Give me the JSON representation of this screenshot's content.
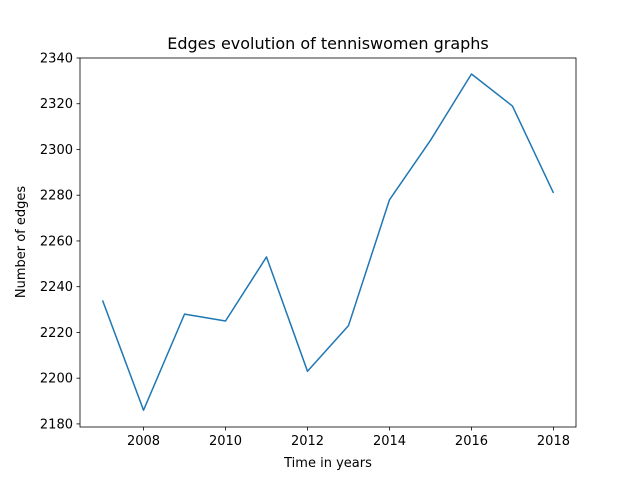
{
  "chart_data": {
    "type": "line",
    "title": "Edges evolution of tenniswomen graphs",
    "xlabel": "Time in years",
    "ylabel": "Number of edges",
    "x": [
      2007,
      2008,
      2009,
      2010,
      2011,
      2012,
      2013,
      2014,
      2015,
      2016,
      2017,
      2018
    ],
    "series": [
      {
        "values": [
          2234,
          2186,
          2228,
          2225,
          2253,
          2203,
          2223,
          2278,
          2304,
          2333,
          2319,
          2281
        ],
        "color": "#1f77b4"
      }
    ],
    "xlim": [
      2006.45,
      2018.55
    ],
    "ylim": [
      2178.65,
      2340
    ],
    "x_ticks": [
      "2008",
      "2010",
      "2012",
      "2014",
      "2016",
      "2018"
    ],
    "y_ticks": [
      "2180",
      "2200",
      "2220",
      "2240",
      "2260",
      "2280",
      "2300",
      "2320",
      "2340"
    ],
    "grid": false,
    "legend": "none"
  }
}
